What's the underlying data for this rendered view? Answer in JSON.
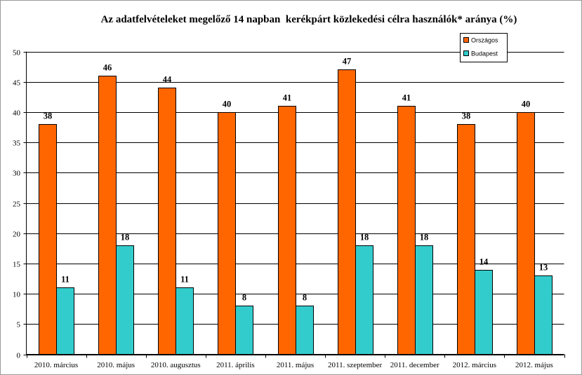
{
  "chart_data": {
    "type": "bar",
    "title": "Az adatfelvételeket megelőző 14 napban  kerékpárt közlekedési célra használók* aránya (%)",
    "categories": [
      "2010. március",
      "2010. május",
      "2010. augusztus",
      "2011. április",
      "2011. május",
      "2011. szeptember",
      "2011. december",
      "2012. március",
      "2012. május"
    ],
    "series": [
      {
        "name": "Országos",
        "color": "#FF6600",
        "values": [
          38,
          46,
          44,
          40,
          41,
          47,
          41,
          38,
          40
        ]
      },
      {
        "name": "Budapest",
        "color": "#33CCCC",
        "values": [
          11,
          18,
          11,
          8,
          8,
          18,
          18,
          14,
          13
        ]
      }
    ],
    "ylim": [
      0,
      50
    ],
    "yticks": [
      0,
      5,
      10,
      15,
      20,
      25,
      30,
      35,
      40,
      45,
      50
    ],
    "grid": true,
    "legend": "top-right"
  }
}
